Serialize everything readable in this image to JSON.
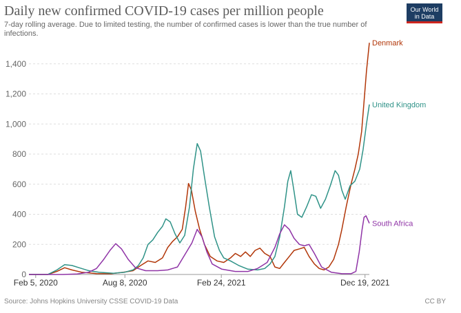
{
  "header": {
    "title": "Daily new confirmed COVID-19 cases per million people",
    "subtitle": "7-day rolling average. Due to limited testing, the number of confirmed cases is lower than the true number of infections.",
    "logo_line1": "Our World",
    "logo_line2": "in Data"
  },
  "footer": {
    "source": "Source: Johns Hopkins University CSSE COVID-19 Data",
    "license": "CC BY"
  },
  "chart_data": {
    "type": "line",
    "x_type": "date",
    "xlim": [
      "2020-01-22",
      "2021-12-28"
    ],
    "ylim": [
      0,
      1550
    ],
    "yticks": [
      0,
      200,
      400,
      600,
      800,
      1000,
      1200,
      1400
    ],
    "ytick_labels": [
      "0",
      "200",
      "400",
      "600",
      "800",
      "1,000",
      "1,200",
      "1,400"
    ],
    "xticks": [
      "2020-02-05",
      "2020-08-08",
      "2021-02-24",
      "2021-12-19"
    ],
    "xtick_labels": [
      "Feb 5, 2020",
      "Aug 8, 2020",
      "Feb 24, 2021",
      "Dec 19, 2021"
    ],
    "grid": "horizontal-dashed",
    "legend": "line-end-labels",
    "series": [
      {
        "name": "Denmark",
        "color": "#b13507",
        "points": [
          [
            "2020-01-22",
            0
          ],
          [
            "2020-03-01",
            0
          ],
          [
            "2020-03-20",
            20
          ],
          [
            "2020-04-05",
            45
          ],
          [
            "2020-04-20",
            30
          ],
          [
            "2020-05-10",
            15
          ],
          [
            "2020-06-10",
            6
          ],
          [
            "2020-07-10",
            5
          ],
          [
            "2020-08-05",
            15
          ],
          [
            "2020-08-25",
            25
          ],
          [
            "2020-09-10",
            60
          ],
          [
            "2020-09-25",
            90
          ],
          [
            "2020-10-10",
            80
          ],
          [
            "2020-10-25",
            110
          ],
          [
            "2020-11-05",
            180
          ],
          [
            "2020-11-15",
            220
          ],
          [
            "2020-11-25",
            250
          ],
          [
            "2020-12-05",
            300
          ],
          [
            "2020-12-12",
            450
          ],
          [
            "2020-12-18",
            605
          ],
          [
            "2020-12-24",
            560
          ],
          [
            "2021-01-01",
            420
          ],
          [
            "2021-01-10",
            300
          ],
          [
            "2021-01-20",
            200
          ],
          [
            "2021-02-01",
            120
          ],
          [
            "2021-02-15",
            90
          ],
          [
            "2021-03-01",
            80
          ],
          [
            "2021-03-15",
            110
          ],
          [
            "2021-03-25",
            140
          ],
          [
            "2021-04-05",
            120
          ],
          [
            "2021-04-15",
            150
          ],
          [
            "2021-04-25",
            120
          ],
          [
            "2021-05-05",
            160
          ],
          [
            "2021-05-15",
            175
          ],
          [
            "2021-05-25",
            140
          ],
          [
            "2021-06-05",
            120
          ],
          [
            "2021-06-15",
            50
          ],
          [
            "2021-06-25",
            40
          ],
          [
            "2021-07-05",
            80
          ],
          [
            "2021-07-15",
            120
          ],
          [
            "2021-07-25",
            160
          ],
          [
            "2021-08-05",
            170
          ],
          [
            "2021-08-15",
            180
          ],
          [
            "2021-08-25",
            120
          ],
          [
            "2021-09-05",
            70
          ],
          [
            "2021-09-15",
            40
          ],
          [
            "2021-09-25",
            30
          ],
          [
            "2021-10-05",
            50
          ],
          [
            "2021-10-15",
            100
          ],
          [
            "2021-10-25",
            200
          ],
          [
            "2021-11-01",
            300
          ],
          [
            "2021-11-10",
            450
          ],
          [
            "2021-11-20",
            600
          ],
          [
            "2021-11-28",
            700
          ],
          [
            "2021-12-05",
            800
          ],
          [
            "2021-12-12",
            950
          ],
          [
            "2021-12-17",
            1150
          ],
          [
            "2021-12-22",
            1350
          ],
          [
            "2021-12-28",
            1540
          ]
        ]
      },
      {
        "name": "United Kingdom",
        "color": "#2e9287",
        "points": [
          [
            "2020-01-22",
            0
          ],
          [
            "2020-03-01",
            0
          ],
          [
            "2020-03-20",
            30
          ],
          [
            "2020-04-05",
            65
          ],
          [
            "2020-04-20",
            60
          ],
          [
            "2020-05-05",
            45
          ],
          [
            "2020-05-25",
            25
          ],
          [
            "2020-06-15",
            15
          ],
          [
            "2020-07-15",
            8
          ],
          [
            "2020-08-08",
            15
          ],
          [
            "2020-08-25",
            30
          ],
          [
            "2020-09-05",
            60
          ],
          [
            "2020-09-15",
            110
          ],
          [
            "2020-09-25",
            200
          ],
          [
            "2020-10-05",
            230
          ],
          [
            "2020-10-15",
            280
          ],
          [
            "2020-10-25",
            320
          ],
          [
            "2020-11-01",
            370
          ],
          [
            "2020-11-10",
            350
          ],
          [
            "2020-11-20",
            270
          ],
          [
            "2020-11-30",
            210
          ],
          [
            "2020-12-10",
            260
          ],
          [
            "2020-12-20",
            450
          ],
          [
            "2020-12-28",
            700
          ],
          [
            "2021-01-05",
            870
          ],
          [
            "2021-01-12",
            820
          ],
          [
            "2021-01-20",
            650
          ],
          [
            "2021-01-30",
            450
          ],
          [
            "2021-02-10",
            250
          ],
          [
            "2021-02-20",
            160
          ],
          [
            "2021-03-01",
            110
          ],
          [
            "2021-03-15",
            90
          ],
          [
            "2021-04-01",
            60
          ],
          [
            "2021-04-20",
            35
          ],
          [
            "2021-05-10",
            30
          ],
          [
            "2021-05-25",
            40
          ],
          [
            "2021-06-05",
            70
          ],
          [
            "2021-06-15",
            120
          ],
          [
            "2021-06-25",
            250
          ],
          [
            "2021-07-05",
            450
          ],
          [
            "2021-07-12",
            620
          ],
          [
            "2021-07-18",
            690
          ],
          [
            "2021-07-25",
            550
          ],
          [
            "2021-08-01",
            400
          ],
          [
            "2021-08-10",
            380
          ],
          [
            "2021-08-20",
            450
          ],
          [
            "2021-08-30",
            530
          ],
          [
            "2021-09-08",
            520
          ],
          [
            "2021-09-18",
            440
          ],
          [
            "2021-09-28",
            500
          ],
          [
            "2021-10-08",
            590
          ],
          [
            "2021-10-18",
            690
          ],
          [
            "2021-10-25",
            660
          ],
          [
            "2021-11-01",
            560
          ],
          [
            "2021-11-08",
            500
          ],
          [
            "2021-11-18",
            590
          ],
          [
            "2021-11-28",
            620
          ],
          [
            "2021-12-08",
            700
          ],
          [
            "2021-12-15",
            830
          ],
          [
            "2021-12-22",
            1000
          ],
          [
            "2021-12-28",
            1130
          ]
        ]
      },
      {
        "name": "South Africa",
        "color": "#8f33a6",
        "points": [
          [
            "2020-01-22",
            0
          ],
          [
            "2020-04-01",
            0
          ],
          [
            "2020-05-01",
            3
          ],
          [
            "2020-05-25",
            15
          ],
          [
            "2020-06-10",
            40
          ],
          [
            "2020-06-25",
            100
          ],
          [
            "2020-07-08",
            160
          ],
          [
            "2020-07-20",
            205
          ],
          [
            "2020-08-01",
            170
          ],
          [
            "2020-08-15",
            100
          ],
          [
            "2020-08-30",
            45
          ],
          [
            "2020-09-20",
            25
          ],
          [
            "2020-10-15",
            25
          ],
          [
            "2020-11-05",
            30
          ],
          [
            "2020-11-25",
            50
          ],
          [
            "2020-12-10",
            130
          ],
          [
            "2020-12-25",
            210
          ],
          [
            "2021-01-05",
            300
          ],
          [
            "2021-01-15",
            250
          ],
          [
            "2021-01-25",
            150
          ],
          [
            "2021-02-05",
            70
          ],
          [
            "2021-02-25",
            35
          ],
          [
            "2021-03-25",
            20
          ],
          [
            "2021-04-20",
            20
          ],
          [
            "2021-05-10",
            40
          ],
          [
            "2021-05-30",
            80
          ],
          [
            "2021-06-15",
            180
          ],
          [
            "2021-06-25",
            270
          ],
          [
            "2021-07-05",
            330
          ],
          [
            "2021-07-15",
            300
          ],
          [
            "2021-07-25",
            240
          ],
          [
            "2021-08-05",
            200
          ],
          [
            "2021-08-15",
            190
          ],
          [
            "2021-08-25",
            200
          ],
          [
            "2021-09-05",
            140
          ],
          [
            "2021-09-20",
            50
          ],
          [
            "2021-10-10",
            15
          ],
          [
            "2021-11-01",
            5
          ],
          [
            "2021-11-20",
            5
          ],
          [
            "2021-11-30",
            20
          ],
          [
            "2021-12-07",
            150
          ],
          [
            "2021-12-13",
            300
          ],
          [
            "2021-12-17",
            380
          ],
          [
            "2021-12-21",
            390
          ],
          [
            "2021-12-28",
            340
          ]
        ]
      }
    ]
  }
}
